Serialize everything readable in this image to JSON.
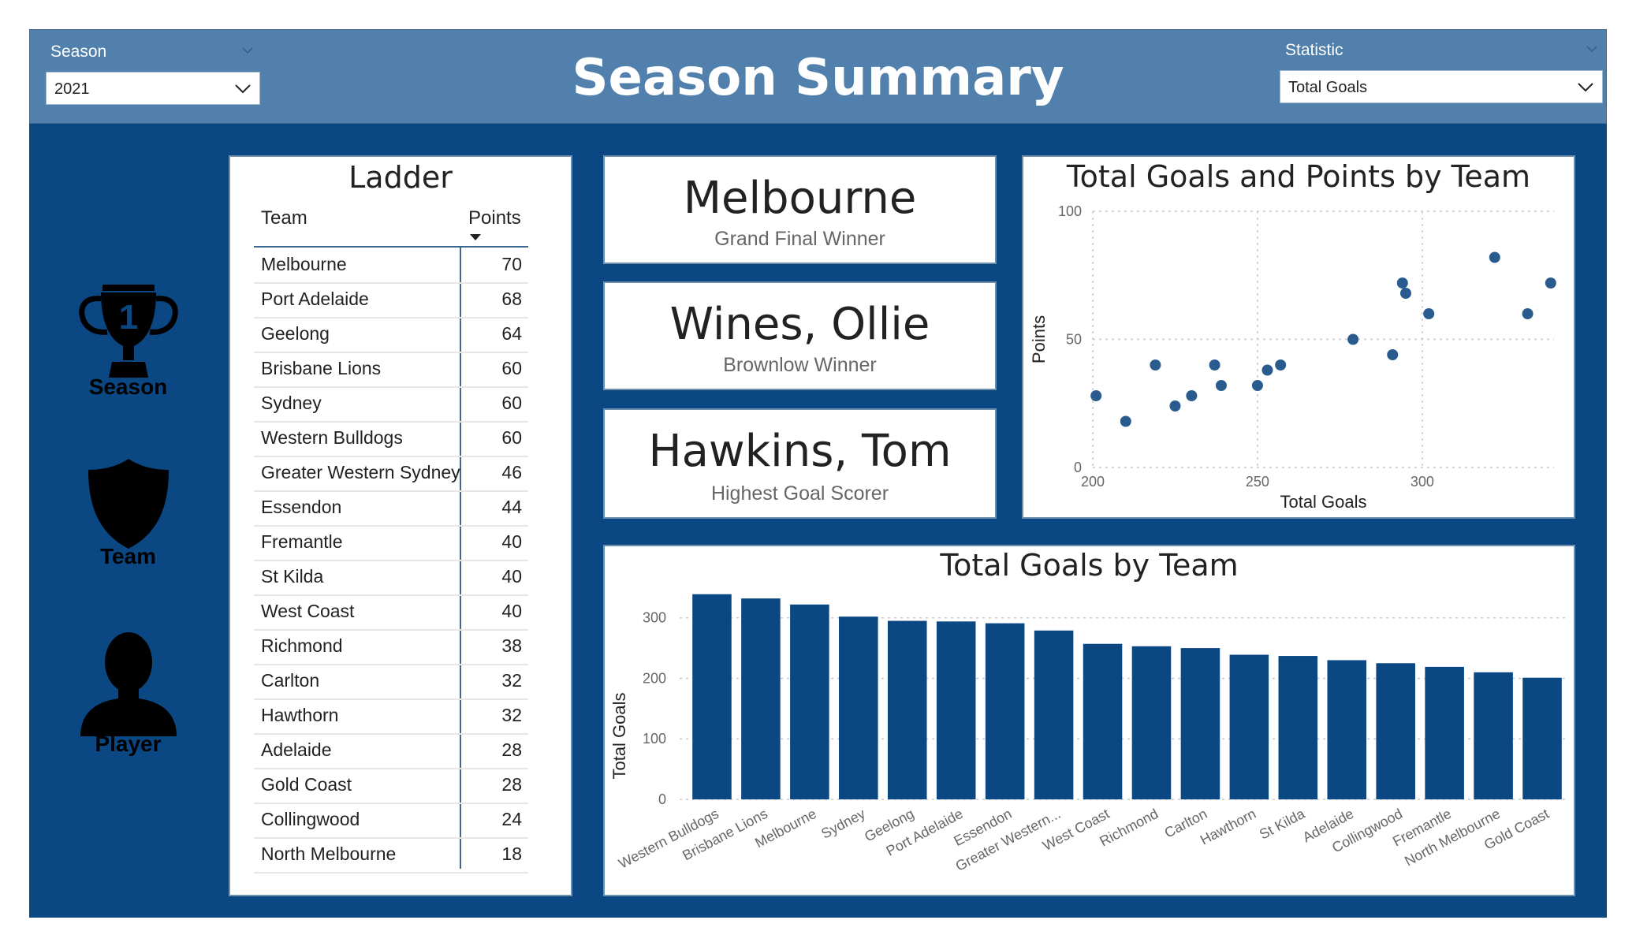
{
  "header": {
    "title": "Season Summary",
    "season_slicer": {
      "label": "Season",
      "value": "2021"
    },
    "statistic_slicer": {
      "label": "Statistic",
      "value": "Total Goals"
    }
  },
  "nav": {
    "season": {
      "label": "Season",
      "badge": "1",
      "icon": "trophy-icon"
    },
    "team": {
      "label": "Team",
      "icon": "shield-icon"
    },
    "player": {
      "label": "Player",
      "icon": "person-icon"
    }
  },
  "ladder": {
    "title": "Ladder",
    "col_team": "Team",
    "col_points": "Points",
    "rows": [
      {
        "team": "Melbourne",
        "points": "70"
      },
      {
        "team": "Port Adelaide",
        "points": "68"
      },
      {
        "team": "Geelong",
        "points": "64"
      },
      {
        "team": "Brisbane Lions",
        "points": "60"
      },
      {
        "team": "Sydney",
        "points": "60"
      },
      {
        "team": "Western Bulldogs",
        "points": "60"
      },
      {
        "team": "Greater Western Sydney",
        "points": "46"
      },
      {
        "team": "Essendon",
        "points": "44"
      },
      {
        "team": "Fremantle",
        "points": "40"
      },
      {
        "team": "St Kilda",
        "points": "40"
      },
      {
        "team": "West Coast",
        "points": "40"
      },
      {
        "team": "Richmond",
        "points": "38"
      },
      {
        "team": "Carlton",
        "points": "32"
      },
      {
        "team": "Hawthorn",
        "points": "32"
      },
      {
        "team": "Adelaide",
        "points": "28"
      },
      {
        "team": "Gold Coast",
        "points": "28"
      },
      {
        "team": "Collingwood",
        "points": "24"
      },
      {
        "team": "North Melbourne",
        "points": "18"
      }
    ]
  },
  "kpis": [
    {
      "value": "Melbourne",
      "label": "Grand Final Winner"
    },
    {
      "value": "Wines, Ollie",
      "label": "Brownlow Winner"
    },
    {
      "value": "Hawkins, Tom",
      "label": "Highest Goal Scorer"
    }
  ],
  "colors": {
    "frame": "#0b4783",
    "header": "#5280ad",
    "bar": "#0b4783",
    "point": "#2a5b8f"
  },
  "chart_data": [
    {
      "type": "scatter",
      "title": "Total Goals and Points by Team",
      "xlabel": "Total Goals",
      "ylabel": "Points",
      "xlim": [
        200,
        340
      ],
      "ylim": [
        0,
        100
      ],
      "xticks": [
        "200",
        "250",
        "300"
      ],
      "yticks": [
        "0",
        "50",
        "100"
      ],
      "grid": true,
      "points": [
        {
          "x": 201,
          "y": 28
        },
        {
          "x": 210,
          "y": 18
        },
        {
          "x": 219,
          "y": 40
        },
        {
          "x": 225,
          "y": 24
        },
        {
          "x": 230,
          "y": 28
        },
        {
          "x": 237,
          "y": 40
        },
        {
          "x": 239,
          "y": 32
        },
        {
          "x": 250,
          "y": 32
        },
        {
          "x": 253,
          "y": 38
        },
        {
          "x": 257,
          "y": 40
        },
        {
          "x": 279,
          "y": 50
        },
        {
          "x": 291,
          "y": 44
        },
        {
          "x": 294,
          "y": 72
        },
        {
          "x": 295,
          "y": 68
        },
        {
          "x": 302,
          "y": 60
        },
        {
          "x": 322,
          "y": 82
        },
        {
          "x": 332,
          "y": 60
        },
        {
          "x": 339,
          "y": 72
        }
      ]
    },
    {
      "type": "bar",
      "title": "Total Goals by Team",
      "xlabel": "",
      "ylabel": "Total Goals",
      "ylim": [
        0,
        340
      ],
      "yticks": [
        "0",
        "100",
        "200",
        "300"
      ],
      "grid": true,
      "categories": [
        "Western Bulldogs",
        "Brisbane Lions",
        "Melbourne",
        "Sydney",
        "Geelong",
        "Port Adelaide",
        "Essendon",
        "Greater Western...",
        "West Coast",
        "Richmond",
        "Carlton",
        "Hawthorn",
        "St Kilda",
        "Adelaide",
        "Collingwood",
        "Fremantle",
        "North Melbourne",
        "Gold Coast"
      ],
      "values": [
        339,
        332,
        322,
        302,
        295,
        294,
        291,
        279,
        257,
        253,
        250,
        239,
        237,
        230,
        225,
        219,
        210,
        201
      ]
    }
  ]
}
